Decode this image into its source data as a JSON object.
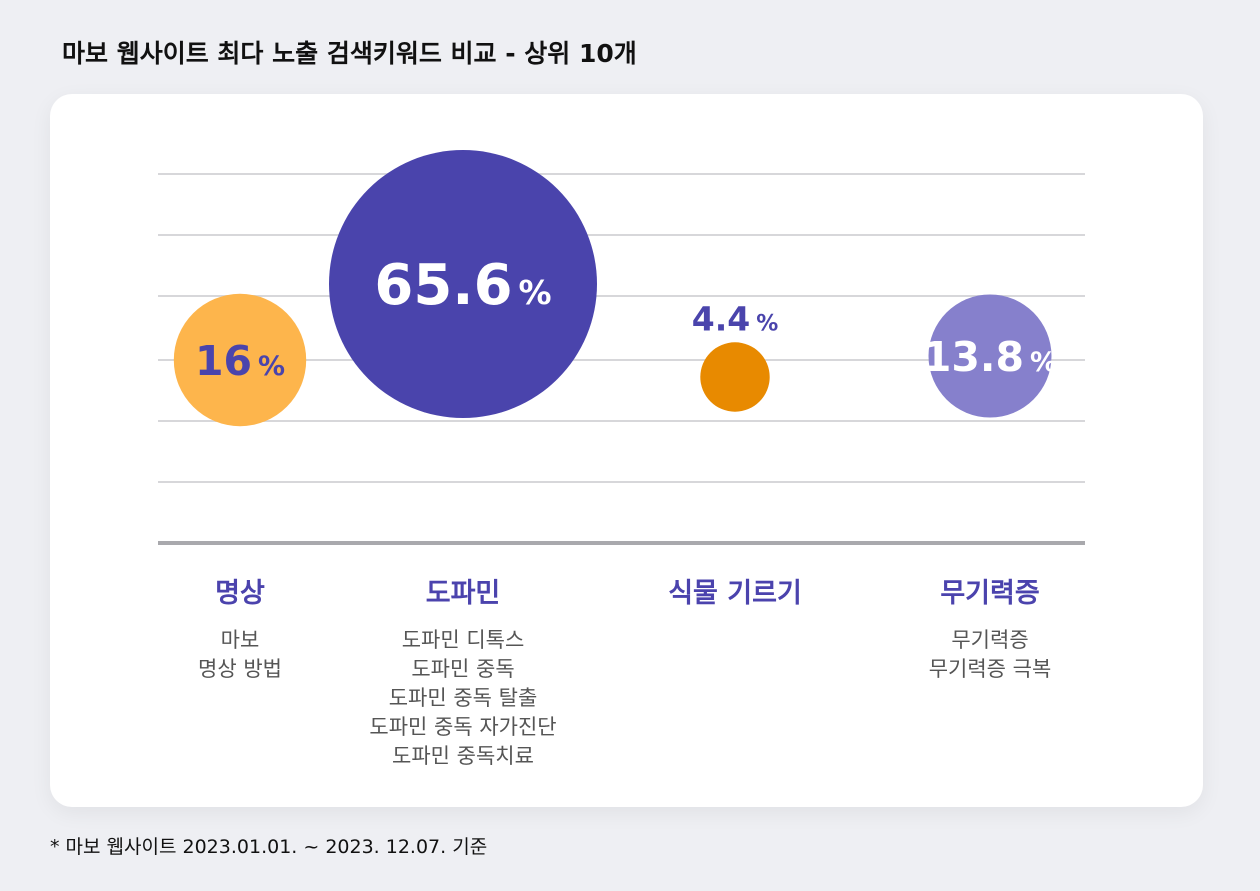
{
  "title": "마보 웹사이트 최다 노출 검색키워드 비교 - 상위 10개",
  "footnote": "* 마보 웹사이트 2023.01.01. ~ 2023. 12.07. 기준",
  "colors": {
    "grid": "#d7d7da",
    "baseline": "#a9a9ad",
    "label": "#4b43ad"
  },
  "chart_data": {
    "type": "bubble",
    "unit": "%",
    "categories": [
      "명상",
      "도파민",
      "식물 기르기",
      "무기력증"
    ],
    "values": [
      16,
      65.6,
      4.4,
      13.8
    ],
    "value_labels": [
      "16",
      "65.6",
      "4.4",
      "13.8"
    ],
    "bubble_colors": [
      "#fdb54c",
      "#4a44ac",
      "#e88a00",
      "#8680cc"
    ],
    "value_text_colors": [
      "#4a44ac",
      "#ffffff",
      "#4a44ac",
      "#ffffff"
    ],
    "keywords": [
      [
        "마보",
        "명상 방법"
      ],
      [
        "도파민 디톡스",
        "도파민 중독",
        "도파민 중독 탈출",
        "도파민 중독 자가진단",
        "도파민 중독치료"
      ],
      [],
      [
        "무기력증",
        "무기력증 극복"
      ]
    ],
    "grid": true,
    "legend": "none"
  }
}
